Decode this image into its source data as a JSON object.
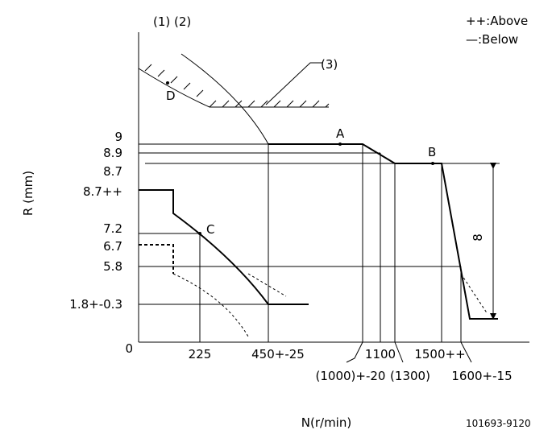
{
  "header": {
    "figure_refs": "(1) (2)",
    "legend_above": "++:Above",
    "legend_below": "—:Below",
    "code": "101693-9120"
  },
  "axes": {
    "y_label": "R (mm)",
    "x_label": "N(r/min)"
  },
  "points": {
    "a": "A",
    "b": "B",
    "c": "C",
    "d": "D",
    "ref3": "(3)",
    "dimension": "8"
  },
  "y_labels": [
    "9",
    "8.9",
    "8.7",
    "8.7++",
    "7.2",
    "6.7",
    "5.8",
    "1.8+-0.3",
    "0"
  ],
  "x_labels": [
    "225",
    "450+-25",
    "1100",
    "1500++",
    "(1000)+-20",
    "(1300)",
    "1600+-15"
  ]
}
